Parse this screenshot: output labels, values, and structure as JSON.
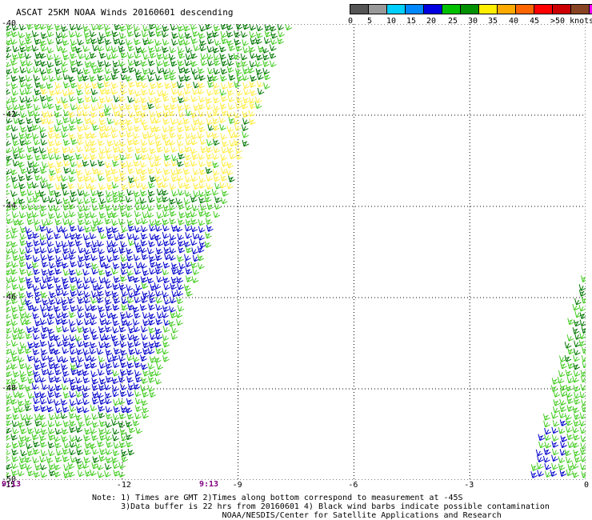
{
  "title": "ASCAT 25KM NOAA Winds 20160601 descending",
  "colorbar": {
    "colors": [
      "#555555",
      "#999999",
      "#00d0ff",
      "#0088ff",
      "#0000e0",
      "#00c000",
      "#009000",
      "#ffee00",
      "#ffaa00",
      "#ff6600",
      "#ff0000",
      "#cc0000",
      "#884422",
      "#ff00ff",
      "#cc00cc",
      "#550088"
    ],
    "labels": [
      "0",
      "5",
      "10",
      "15",
      "20",
      "25",
      "30",
      "35",
      "40",
      "45",
      ">50 knots"
    ]
  },
  "axes": {
    "lon_ticks": [
      "-15",
      "-12",
      "-9",
      "-6",
      "-3",
      "0"
    ],
    "lat_ticks": [
      "-40",
      "-42",
      "-44",
      "-46",
      "-48",
      "-50"
    ],
    "lon_range": [
      -15,
      0
    ],
    "lat_range": [
      -40,
      -50
    ],
    "grid": "dotted"
  },
  "times": [
    "9:13",
    "9:13"
  ],
  "notes": [
    "Note: 1) Times are GMT 2)Times along bottom correspond to measurement at -45S",
    "      3)Data buffer is 22 hrs from 20160601 4) Black wind barbs indicate possible contamination",
    "                           NOAA/NESDIS/Center for Satellite Applications and Research"
  ],
  "wind_colors": {
    "light_green": "#44cc22",
    "dark_green": "#007700",
    "yellow": "#ffee44",
    "blue": "#0000cc"
  }
}
